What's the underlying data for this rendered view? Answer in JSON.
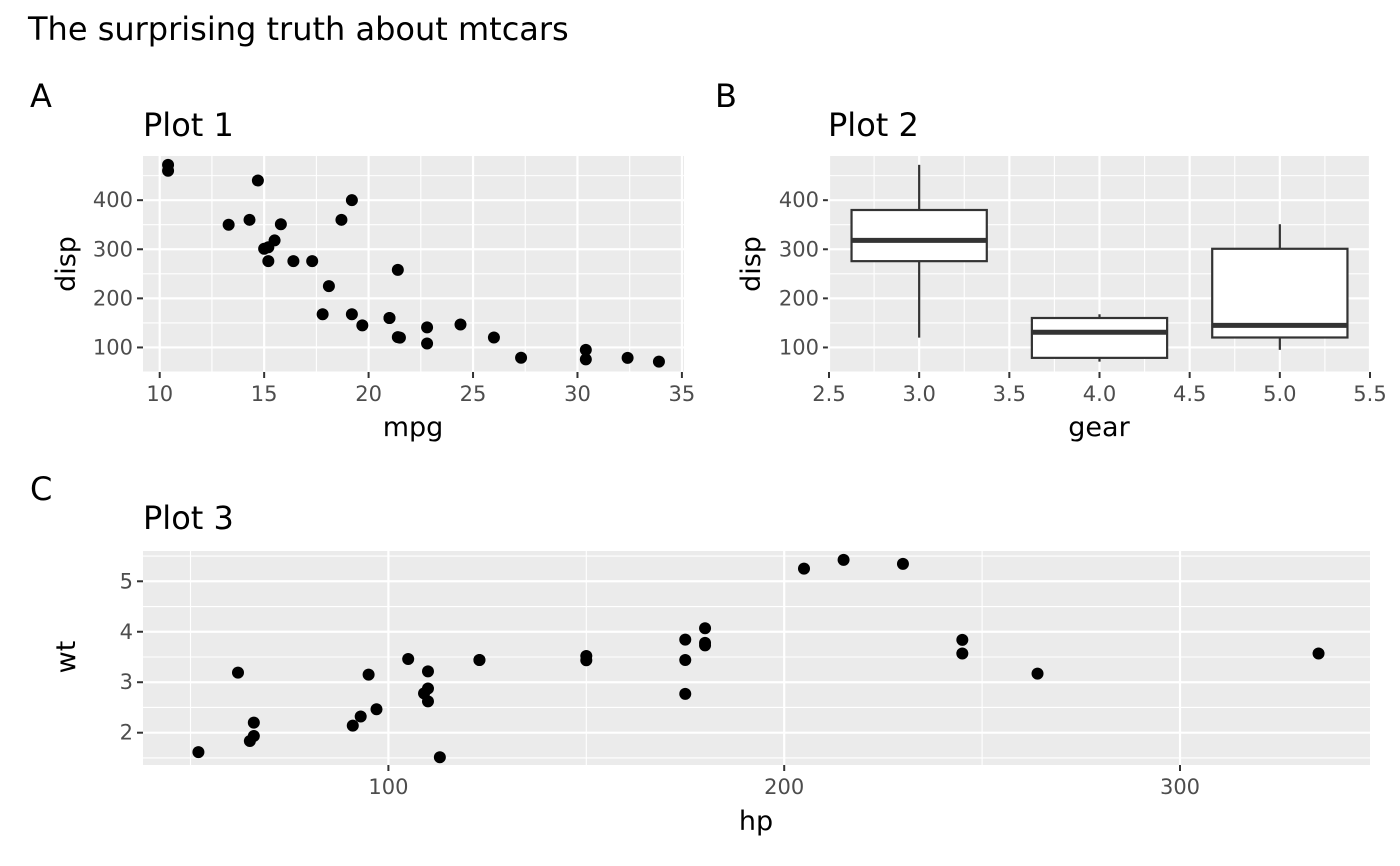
{
  "figure": {
    "title": "The surprising truth about mtcars"
  },
  "chart_data": [
    {
      "tag": "A",
      "title": "Plot 1",
      "type": "scatter",
      "xlabel": "mpg",
      "ylabel": "disp",
      "xlim": [
        9.2,
        35.1
      ],
      "ylim": [
        50,
        490
      ],
      "xticks": [
        10,
        15,
        20,
        25,
        30,
        35
      ],
      "yticks": [
        100,
        200,
        300,
        400
      ],
      "grid": true,
      "points": [
        {
          "x": 21.0,
          "y": 160
        },
        {
          "x": 21.0,
          "y": 160
        },
        {
          "x": 22.8,
          "y": 108
        },
        {
          "x": 21.4,
          "y": 258
        },
        {
          "x": 18.7,
          "y": 360
        },
        {
          "x": 18.1,
          "y": 225
        },
        {
          "x": 14.3,
          "y": 360
        },
        {
          "x": 24.4,
          "y": 146.7
        },
        {
          "x": 22.8,
          "y": 140.8
        },
        {
          "x": 19.2,
          "y": 167.6
        },
        {
          "x": 17.8,
          "y": 167.6
        },
        {
          "x": 16.4,
          "y": 275.8
        },
        {
          "x": 17.3,
          "y": 275.8
        },
        {
          "x": 15.2,
          "y": 275.8
        },
        {
          "x": 10.4,
          "y": 472
        },
        {
          "x": 10.4,
          "y": 460
        },
        {
          "x": 14.7,
          "y": 440
        },
        {
          "x": 32.4,
          "y": 78.7
        },
        {
          "x": 30.4,
          "y": 75.7
        },
        {
          "x": 33.9,
          "y": 71.1
        },
        {
          "x": 21.5,
          "y": 120.1
        },
        {
          "x": 15.5,
          "y": 318
        },
        {
          "x": 15.2,
          "y": 304
        },
        {
          "x": 13.3,
          "y": 350
        },
        {
          "x": 19.2,
          "y": 400
        },
        {
          "x": 27.3,
          "y": 79
        },
        {
          "x": 26.0,
          "y": 120.3
        },
        {
          "x": 30.4,
          "y": 95.1
        },
        {
          "x": 15.8,
          "y": 351
        },
        {
          "x": 19.7,
          "y": 145
        },
        {
          "x": 15.0,
          "y": 301
        },
        {
          "x": 21.4,
          "y": 121
        }
      ]
    },
    {
      "tag": "B",
      "title": "Plot 2",
      "type": "box",
      "xlabel": "gear",
      "ylabel": "disp",
      "xlim": [
        2.5,
        5.5
      ],
      "ylim": [
        50,
        490
      ],
      "xticks": [
        "2.5",
        "3.0",
        "3.5",
        "4.0",
        "4.5",
        "5.0",
        "5.5"
      ],
      "yticks": [
        100,
        200,
        300,
        400
      ],
      "grid": true,
      "boxes": [
        {
          "x": 3,
          "min": 120.1,
          "q1": 275.8,
          "median": 318,
          "q3": 380,
          "max": 472
        },
        {
          "x": 4,
          "min": 71.1,
          "q1": 78.8,
          "median": 130.9,
          "q3": 160,
          "max": 167.6
        },
        {
          "x": 5,
          "min": 95.1,
          "q1": 120.3,
          "median": 145,
          "q3": 301,
          "max": 351
        }
      ]
    },
    {
      "tag": "C",
      "title": "Plot 3",
      "type": "scatter",
      "xlabel": "hp",
      "ylabel": "wt",
      "xlim": [
        38,
        348
      ],
      "ylim": [
        1.36,
        5.6
      ],
      "xticks": [
        100,
        200,
        300
      ],
      "yticks": [
        2,
        3,
        4,
        5
      ],
      "grid": true,
      "points": [
        {
          "x": 110,
          "y": 2.62
        },
        {
          "x": 110,
          "y": 2.875
        },
        {
          "x": 93,
          "y": 2.32
        },
        {
          "x": 110,
          "y": 3.215
        },
        {
          "x": 175,
          "y": 3.44
        },
        {
          "x": 105,
          "y": 3.46
        },
        {
          "x": 245,
          "y": 3.57
        },
        {
          "x": 62,
          "y": 3.19
        },
        {
          "x": 95,
          "y": 3.15
        },
        {
          "x": 123,
          "y": 3.44
        },
        {
          "x": 123,
          "y": 3.44
        },
        {
          "x": 180,
          "y": 4.07
        },
        {
          "x": 180,
          "y": 3.73
        },
        {
          "x": 180,
          "y": 3.78
        },
        {
          "x": 205,
          "y": 5.25
        },
        {
          "x": 215,
          "y": 5.424
        },
        {
          "x": 230,
          "y": 5.345
        },
        {
          "x": 66,
          "y": 2.2
        },
        {
          "x": 52,
          "y": 1.615
        },
        {
          "x": 65,
          "y": 1.835
        },
        {
          "x": 97,
          "y": 2.465
        },
        {
          "x": 150,
          "y": 3.52
        },
        {
          "x": 150,
          "y": 3.435
        },
        {
          "x": 245,
          "y": 3.84
        },
        {
          "x": 175,
          "y": 3.845
        },
        {
          "x": 66,
          "y": 1.935
        },
        {
          "x": 91,
          "y": 2.14
        },
        {
          "x": 113,
          "y": 1.513
        },
        {
          "x": 264,
          "y": 3.17
        },
        {
          "x": 175,
          "y": 2.77
        },
        {
          "x": 335,
          "y": 3.57
        },
        {
          "x": 109,
          "y": 2.78
        }
      ]
    }
  ]
}
